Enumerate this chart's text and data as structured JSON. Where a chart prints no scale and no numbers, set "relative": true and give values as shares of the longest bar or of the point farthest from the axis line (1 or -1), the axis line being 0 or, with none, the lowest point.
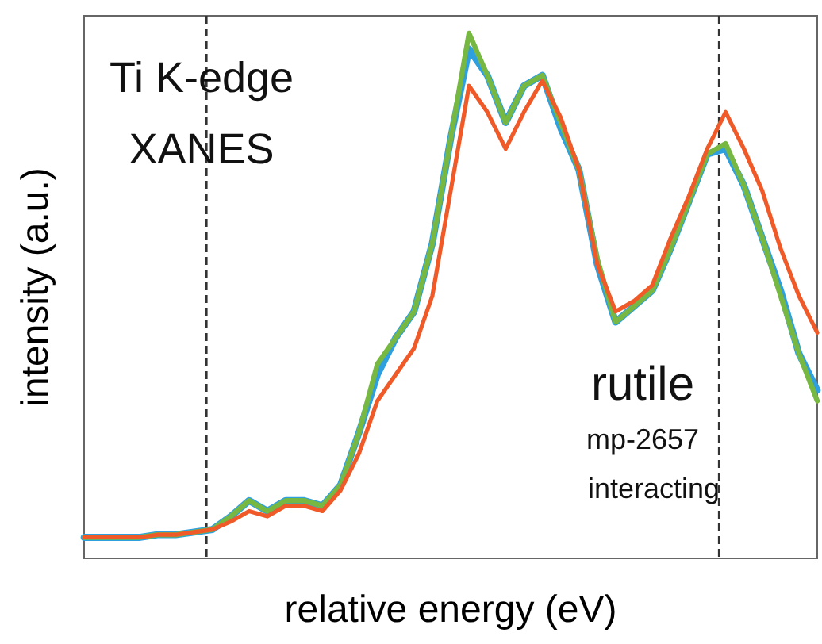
{
  "chart_data": {
    "type": "line",
    "relative": true,
    "xlabel": "relative energy (eV)",
    "ylabel": "intensity (a.u.)",
    "annotations": [
      "Ti K-edge",
      "XANES",
      "rutile",
      "mp-2657",
      "interacting"
    ],
    "categories": [
      null,
      null,
      null,
      null,
      null,
      null,
      null,
      null,
      null,
      null,
      null,
      null,
      null,
      null,
      null,
      null,
      null,
      null,
      null,
      null,
      null,
      null,
      null,
      null,
      null,
      null,
      null,
      null,
      null,
      null,
      null,
      null,
      null,
      null,
      null,
      null,
      null,
      null,
      null,
      null,
      null
    ],
    "grid": false,
    "marker": "none",
    "line_style": "solid",
    "series": [
      {
        "color": "#2e9fdf",
        "values": [
          0.04,
          0.04,
          0.04,
          0.04,
          0.045,
          0.045,
          0.05,
          0.055,
          0.08,
          0.11,
          0.09,
          0.11,
          0.11,
          0.1,
          0.14,
          0.24,
          0.35,
          0.42,
          0.47,
          0.6,
          0.8,
          0.97,
          0.92,
          0.83,
          0.9,
          0.92,
          0.82,
          0.74,
          0.56,
          0.45,
          0.48,
          0.51,
          0.59,
          0.68,
          0.77,
          0.78,
          0.71,
          0.61,
          0.51,
          0.39,
          0.32
        ]
      },
      {
        "color": "#77b843",
        "values": [
          0.04,
          0.04,
          0.04,
          0.04,
          0.045,
          0.045,
          0.05,
          0.055,
          0.08,
          0.11,
          0.09,
          0.11,
          0.11,
          0.1,
          0.14,
          0.24,
          0.37,
          0.42,
          0.47,
          0.6,
          0.8,
          1.0,
          0.92,
          0.83,
          0.9,
          0.92,
          0.83,
          0.74,
          0.57,
          0.45,
          0.48,
          0.51,
          0.59,
          0.68,
          0.77,
          0.79,
          0.71,
          0.61,
          0.5,
          0.39,
          0.3
        ]
      },
      {
        "color": "#f05a28",
        "values": [
          0.04,
          0.04,
          0.04,
          0.04,
          0.045,
          0.045,
          0.05,
          0.055,
          0.07,
          0.09,
          0.08,
          0.1,
          0.1,
          0.09,
          0.13,
          0.2,
          0.3,
          0.35,
          0.4,
          0.5,
          0.7,
          0.9,
          0.85,
          0.78,
          0.85,
          0.91,
          0.84,
          0.74,
          0.56,
          0.47,
          0.49,
          0.52,
          0.61,
          0.69,
          0.78,
          0.85,
          0.78,
          0.7,
          0.59,
          0.5,
          0.43
        ]
      }
    ]
  }
}
